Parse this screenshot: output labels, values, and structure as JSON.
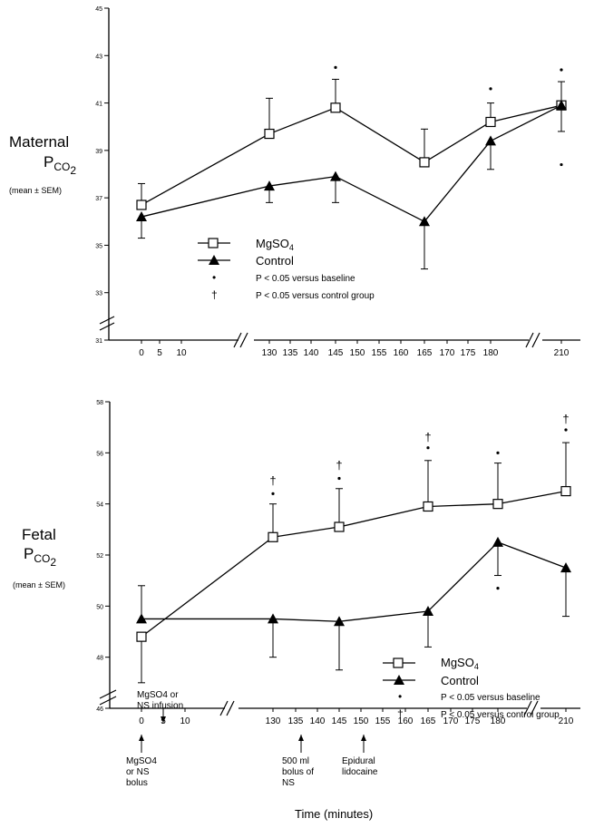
{
  "chart_data": [
    {
      "type": "line",
      "ylabel_main": "Maternal",
      "ylabel_sym": "P",
      "ylabel_sub": "CO",
      "ylabel_sub2": "2",
      "ylabel_note": "(mean ± SEM)",
      "ylim": [
        31,
        45
      ],
      "yticks": [
        31,
        33,
        35,
        37,
        39,
        41,
        43,
        45
      ],
      "xticks": [
        "0",
        "5",
        "10",
        "130",
        "135",
        "140",
        "145",
        "150",
        "155",
        "160",
        "165",
        "170",
        "175",
        "180",
        "210"
      ],
      "series": [
        {
          "name": "MgSO4",
          "marker": "square",
          "x": [
            0,
            130,
            145,
            165,
            180,
            210
          ],
          "y": [
            36.7,
            39.7,
            40.8,
            38.5,
            40.2,
            40.9
          ],
          "err": [
            0.9,
            1.5,
            1.2,
            1.4,
            0.8,
            1.1
          ],
          "err_dir": [
            1,
            1,
            1,
            1,
            1,
            -1
          ]
        },
        {
          "name": "Control",
          "marker": "triangle",
          "x": [
            0,
            130,
            145,
            165,
            180,
            210
          ],
          "y": [
            36.2,
            37.5,
            37.9,
            36.0,
            39.4,
            40.9
          ],
          "err": [
            0.9,
            0.7,
            1.1,
            2.0,
            1.2,
            1.0
          ],
          "err_dir": [
            -1,
            -1,
            -1,
            -1,
            -1,
            1
          ]
        }
      ],
      "sig_dots": [
        {
          "x": 145,
          "y": 42.5
        },
        {
          "x": 180,
          "y": 41.6
        },
        {
          "x": 210,
          "y": 42.4
        },
        {
          "x": 210,
          "y": 38.4
        }
      ],
      "legend": {
        "mg_label": "MgSO",
        "mg_sub": "4",
        "control_label": "Control",
        "dot_sym": "•",
        "dot_text": "P < 0.05 versus baseline",
        "dagger_sym": "†",
        "dagger_text": "P < 0.05 versus control group"
      }
    },
    {
      "type": "line",
      "ylabel_main": "Fetal",
      "ylabel_sym": "P",
      "ylabel_sub": "CO",
      "ylabel_sub2": "2",
      "ylabel_note": "(mean ± SEM)",
      "ylim": [
        46,
        58
      ],
      "yticks": [
        46,
        48,
        50,
        52,
        54,
        56,
        58
      ],
      "xticks": [
        "0",
        "5",
        "10",
        "130",
        "135",
        "140",
        "145",
        "150",
        "155",
        "160",
        "165",
        "170",
        "175",
        "180",
        "210"
      ],
      "xlabel": "Time (minutes)",
      "series": [
        {
          "name": "MgSO4",
          "marker": "square",
          "x": [
            0,
            130,
            145,
            165,
            180,
            210
          ],
          "y": [
            48.8,
            52.7,
            53.1,
            53.9,
            54.0,
            54.5
          ],
          "err": [
            1.8,
            1.3,
            1.5,
            1.8,
            1.6,
            1.9
          ],
          "err_dir": [
            -1,
            1,
            1,
            1,
            1,
            1
          ]
        },
        {
          "name": "Control",
          "marker": "triangle",
          "x": [
            0,
            130,
            145,
            165,
            180,
            210
          ],
          "y": [
            49.5,
            49.5,
            49.4,
            49.8,
            52.5,
            51.5
          ],
          "err": [
            1.3,
            1.5,
            1.9,
            1.4,
            1.3,
            1.9
          ],
          "err_dir": [
            1,
            -1,
            -1,
            -1,
            -1,
            -1
          ]
        }
      ],
      "sig_dots": [
        {
          "x": 130,
          "y": 54.4
        },
        {
          "x": 145,
          "y": 55.0
        },
        {
          "x": 165,
          "y": 56.2
        },
        {
          "x": 180,
          "y": 56.0
        },
        {
          "x": 210,
          "y": 56.9
        },
        {
          "x": 180,
          "y": 50.7
        }
      ],
      "daggers": [
        {
          "x": 130,
          "y": 54.9
        },
        {
          "x": 145,
          "y": 55.5
        },
        {
          "x": 165,
          "y": 56.6
        },
        {
          "x": 210,
          "y": 57.3
        }
      ],
      "legend": {
        "mg_label": "MgSO",
        "mg_sub": "4",
        "control_label": "Control",
        "dot_sym": "•",
        "dot_text": "P < 0.05 versus baseline",
        "dagger_sym": "†",
        "dagger_text": "P < 0.05 versus control group"
      },
      "annotations": {
        "infusion_1": "MgSO4 or",
        "infusion_2": "NS infusion",
        "bolus_1": "MgSO4",
        "bolus_2": "or NS",
        "bolus_3": "bolus",
        "ns_1": "500 ml",
        "ns_2": "bolus of",
        "ns_3": "NS",
        "epi_1": "Epidural",
        "epi_2": "lidocaine"
      }
    }
  ]
}
